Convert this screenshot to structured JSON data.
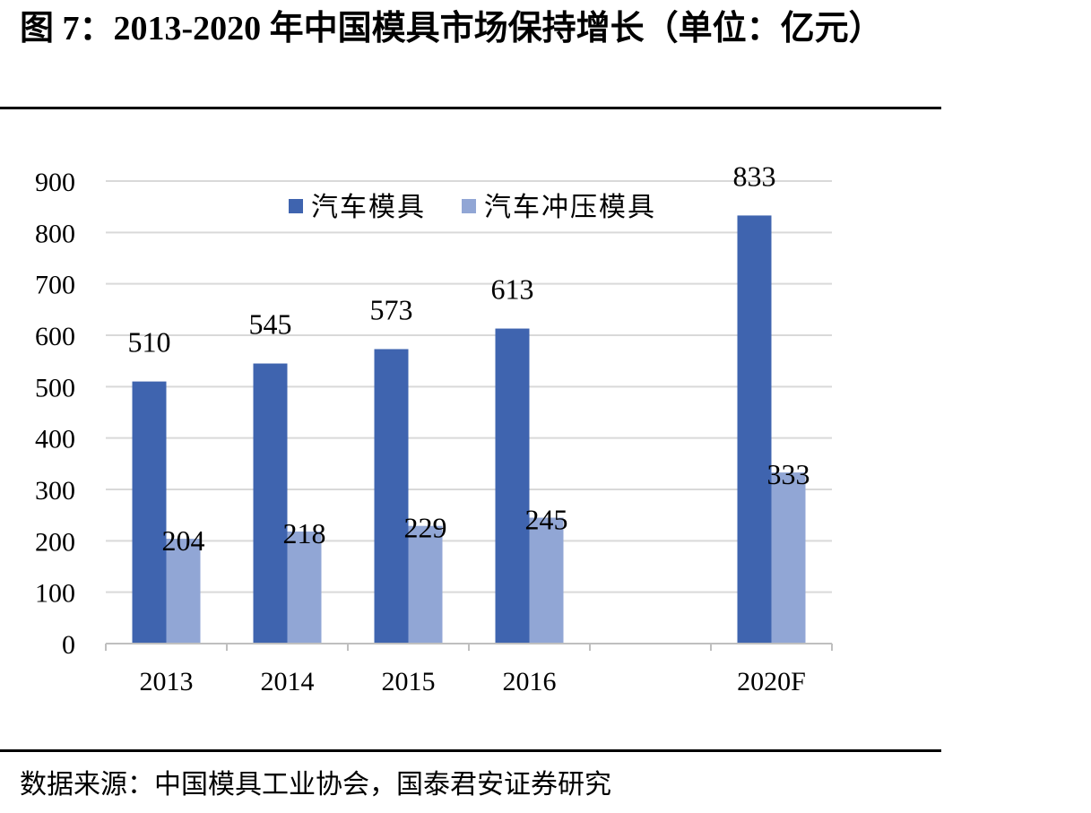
{
  "page": {
    "title": "图 7：2013-2020 年中国模具市场保持增长（单位：亿元）",
    "source": "数据来源：中国模具工业协会，国泰君安证券研究"
  },
  "chart_data": {
    "type": "bar",
    "title": "图 7：2013-2020 年中国模具市场保持增长（单位：亿元）",
    "categories": [
      "2013",
      "2014",
      "2015",
      "2016",
      "",
      "2020F"
    ],
    "series": [
      {
        "name": "汽车模具",
        "values": [
          510,
          545,
          573,
          613,
          null,
          833
        ],
        "color": "#3F64AF"
      },
      {
        "name": "汽车冲压模具",
        "values": [
          204,
          218,
          229,
          245,
          null,
          333
        ],
        "color": "#91A6D5"
      }
    ],
    "yticks": [
      "0",
      "100",
      "200",
      "300",
      "400",
      "500",
      "600",
      "700",
      "800",
      "900"
    ],
    "ylim": [
      0,
      900
    ],
    "grid": true,
    "legend": "top-center",
    "data_labels": true
  }
}
